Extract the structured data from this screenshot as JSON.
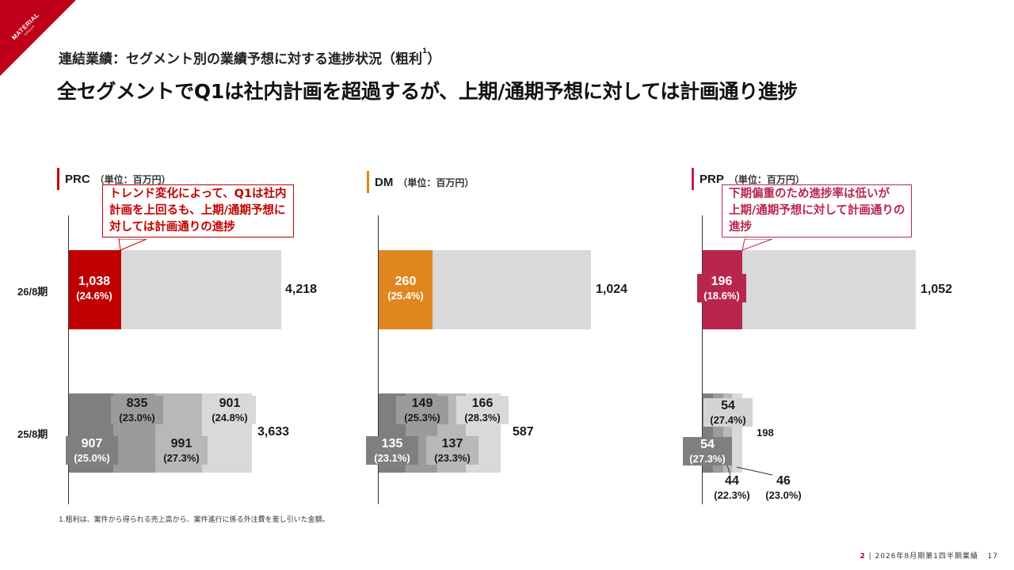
{
  "logo": {
    "brand": "MATERIAL",
    "sub": "GROUP"
  },
  "subtitle": "連結業績：セグメント別の業績予想に対する進捗状況（粗利",
  "subtitle_footnote_mark": "1",
  "subtitle_end": "）",
  "title": "全セグメントでQ1は社内計画を超過するが、上期/通期予想に対しては計画通り進捗",
  "footnote": "1.粗利は、案件から得られる売上高から、案件進行に係る外注費を差し引いた金額。",
  "footer": {
    "page_group": "2",
    "separator": "|",
    "doc": "2026年8月期第1四半期業績",
    "page": "17"
  },
  "row_labels": {
    "fy26": "26/8期",
    "fy25": "25/8期"
  },
  "colors": {
    "prc": "#c00000",
    "dm": "#e0861f",
    "prp": "#b8264e",
    "gray_bg": "#d9d9d9",
    "brand": "#c0001a"
  },
  "chart_data": [
    {
      "type": "bar",
      "segment": "PRC",
      "unit": "（単位：百万円）",
      "fy26": {
        "q1": "1,038",
        "q1_pct": "(24.6%)",
        "q1_value": 1038,
        "total": "4,218",
        "total_value": 4218
      },
      "fy25": {
        "quarters": [
          {
            "value": "907",
            "pct": "(25.0%)"
          },
          {
            "value": "835",
            "pct": "(23.0%)"
          },
          {
            "value": "991",
            "pct": "(27.3%)"
          },
          {
            "value": "901",
            "pct": "(24.8%)"
          }
        ],
        "total": "3,633",
        "total_value": 3633
      },
      "callout": [
        "トレンド変化によって、Q1は社内",
        "計画を上回るも、上期/通期予想に",
        "対しては計画通りの進捗"
      ]
    },
    {
      "type": "bar",
      "segment": "DM",
      "unit": "（単位：百万円）",
      "fy26": {
        "q1": "260",
        "q1_pct": "(25.4%)",
        "q1_value": 260,
        "total": "1,024",
        "total_value": 1024
      },
      "fy25": {
        "quarters": [
          {
            "value": "135",
            "pct": "(23.1%)"
          },
          {
            "value": "149",
            "pct": "(25.3%)"
          },
          {
            "value": "137",
            "pct": "(23.3%)"
          },
          {
            "value": "166",
            "pct": "(28.3%)"
          }
        ],
        "total": "587",
        "total_value": 587
      }
    },
    {
      "type": "bar",
      "segment": "PRP",
      "unit": "（単位：百万円）",
      "fy26": {
        "q1": "196",
        "q1_pct": "(18.6%)",
        "q1_value": 196,
        "total": "1,052",
        "total_value": 1052
      },
      "fy25": {
        "quarters": [
          {
            "value": "54",
            "pct": "(27.3%)"
          },
          {
            "value": "54",
            "pct": "(27.4%)"
          },
          {
            "value": "44",
            "pct": "(22.3%)"
          },
          {
            "value": "46",
            "pct": "(23.0%)"
          }
        ],
        "total": "198",
        "total_value": 198
      },
      "callout": [
        "下期偏重のため進捗率は低いが",
        "上期/通期予想に対して計画通りの",
        "進捗"
      ]
    }
  ]
}
